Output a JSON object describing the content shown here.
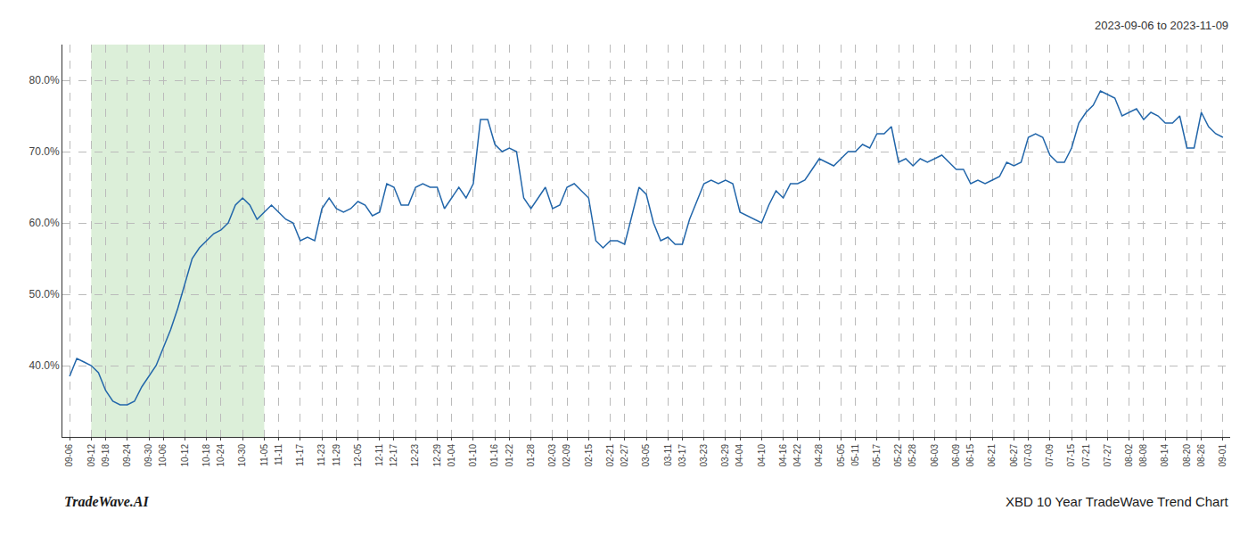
{
  "chart_data": {
    "type": "line",
    "title": "XBD 10 Year TradeWave Trend Chart",
    "subtitle": "2023-09-06 to 2023-11-09",
    "annotations": [
      "TradeWave.AI"
    ],
    "color": "#2266aa",
    "grid": true,
    "shaded_region": {
      "start": "09-12",
      "end": "11-05",
      "color": "#d6ecd2"
    },
    "ylim": [
      30,
      85
    ],
    "yticks": [
      {
        "value": 40.0,
        "label": "40.0%"
      },
      {
        "value": 50.0,
        "label": "50.0%"
      },
      {
        "value": 60.0,
        "label": "60.0%"
      },
      {
        "value": 70.0,
        "label": "70.0%"
      },
      {
        "value": 80.0,
        "label": "80.0%"
      }
    ],
    "categories": [
      "09-06",
      null,
      null,
      "09-12",
      null,
      "09-18",
      null,
      null,
      "09-24",
      null,
      null,
      "09-30",
      null,
      "10-06",
      null,
      null,
      "10-12",
      null,
      null,
      "10-18",
      null,
      "10-24",
      null,
      null,
      "10-30",
      null,
      null,
      "11-05",
      null,
      "11-11",
      null,
      null,
      "11-17",
      null,
      null,
      "11-23",
      null,
      "11-29",
      null,
      null,
      "12-05",
      null,
      null,
      "12-11",
      null,
      "12-17",
      null,
      null,
      "12-23",
      null,
      null,
      "12-29",
      null,
      "01-04",
      null,
      null,
      "01-10",
      null,
      null,
      "01-16",
      null,
      "01-22",
      null,
      null,
      "01-28",
      null,
      null,
      "02-03",
      null,
      "02-09",
      null,
      null,
      "02-15",
      null,
      null,
      "02-21",
      null,
      "02-27",
      null,
      null,
      "03-05",
      null,
      null,
      "03-11",
      null,
      "03-17",
      null,
      null,
      "03-23",
      null,
      null,
      "03-29",
      null,
      "04-04",
      null,
      null,
      "04-10",
      null,
      null,
      "04-16",
      null,
      "04-22",
      null,
      null,
      "04-28",
      null,
      null,
      "05-05",
      null,
      "05-11",
      null,
      null,
      "05-17",
      null,
      null,
      "05-22",
      null,
      "05-28",
      null,
      null,
      "06-03",
      null,
      null,
      "06-09",
      null,
      "06-15",
      null,
      null,
      "06-21",
      null,
      null,
      "06-27",
      null,
      "07-03",
      null,
      null,
      "07-09",
      null,
      null,
      "07-15",
      null,
      "07-21",
      null,
      null,
      "07-27",
      null,
      null,
      "08-02",
      null,
      "08-08",
      null,
      null,
      "08-14",
      null,
      null,
      "08-20",
      null,
      "08-26",
      null,
      null,
      "09-01"
    ],
    "values": [
      38.5,
      41.0,
      40.5,
      40.0,
      39.0,
      36.5,
      35.0,
      34.5,
      34.5,
      35.0,
      37.0,
      38.5,
      40.0,
      42.5,
      45.0,
      48.0,
      51.5,
      55.0,
      56.5,
      57.5,
      58.5,
      59.0,
      60.0,
      62.5,
      63.5,
      62.5,
      60.5,
      61.5,
      62.5,
      61.5,
      60.5,
      60.0,
      57.5,
      58.0,
      57.5,
      62.0,
      63.5,
      62.0,
      61.5,
      62.0,
      63.0,
      62.5,
      61.0,
      61.5,
      65.5,
      65.0,
      62.5,
      62.5,
      65.0,
      65.5,
      65.0,
      65.0,
      62.0,
      63.5,
      65.0,
      63.5,
      65.5,
      74.5,
      74.5,
      71.0,
      70.0,
      70.5,
      70.0,
      63.5,
      62.0,
      63.5,
      65.0,
      62.0,
      62.5,
      65.0,
      65.5,
      64.5,
      63.5,
      57.5,
      56.5,
      57.5,
      57.5,
      57.0,
      61.0,
      65.0,
      64.0,
      60.0,
      57.5,
      58.0,
      57.0,
      57.0,
      60.5,
      63.0,
      65.5,
      66.0,
      65.5,
      66.0,
      65.5,
      61.5,
      61.0,
      60.5,
      60.0,
      62.5,
      64.5,
      63.5,
      65.5,
      65.5,
      66.0,
      67.5,
      69.0,
      68.5,
      68.0,
      69.0,
      70.0,
      70.0,
      71.0,
      70.5,
      72.5,
      72.5,
      73.5,
      68.5,
      69.0,
      68.0,
      69.0,
      68.5,
      69.0,
      69.5,
      68.5,
      67.5,
      67.5,
      65.5,
      66.0,
      65.5,
      66.0,
      66.5,
      68.5,
      68.0,
      68.5,
      72.0,
      72.5,
      72.0,
      69.5,
      68.5,
      68.5,
      70.5,
      74.0,
      75.5,
      76.5,
      78.5,
      78.0,
      77.5,
      75.0,
      75.5,
      76.0,
      74.5,
      75.5,
      75.0,
      74.0,
      74.0,
      75.0,
      70.5,
      70.5,
      75.5,
      73.5,
      72.5,
      72.0
    ]
  }
}
